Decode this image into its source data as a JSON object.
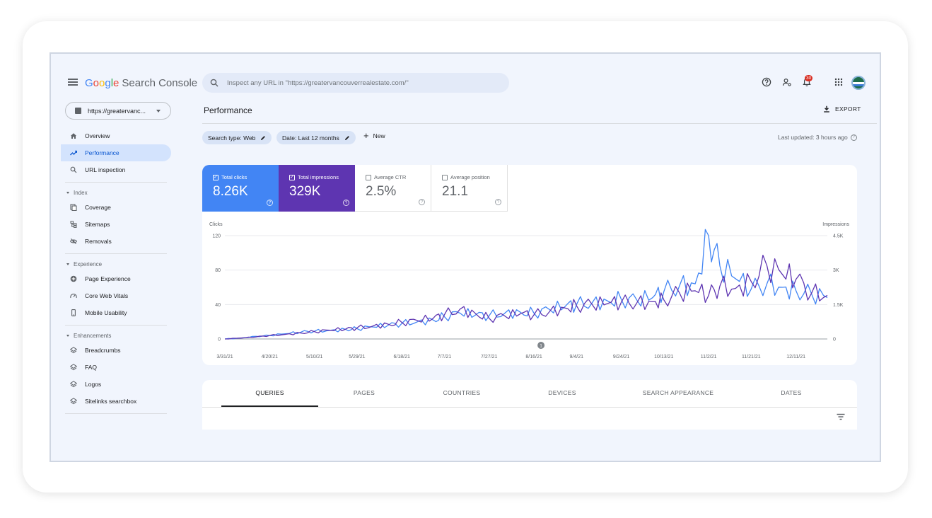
{
  "app": {
    "logo_letters": [
      "G",
      "o",
      "o",
      "g",
      "l",
      "e"
    ],
    "product": "Search Console",
    "search_placeholder": "Inspect any URL in \"https://greatervancouverrealestate.com/\"",
    "notification_count": "30",
    "property": "https://greatervanc..."
  },
  "icons": {
    "menu": "hamburger-icon",
    "search": "search-icon",
    "help": "help-icon",
    "users": "manage-users-icon",
    "notifications": "bell-icon",
    "apps": "apps-grid-icon",
    "export": "download-icon",
    "edit": "pencil-icon",
    "filter": "filter-icon"
  },
  "sidebar": {
    "top_items": [
      {
        "label": "Overview",
        "icon": "home-icon",
        "active": false
      },
      {
        "label": "Performance",
        "icon": "trending-up-icon",
        "active": true
      },
      {
        "label": "URL inspection",
        "icon": "search-icon",
        "active": false
      }
    ],
    "sections": [
      {
        "label": "Index",
        "items": [
          {
            "label": "Coverage",
            "icon": "coverage-icon"
          },
          {
            "label": "Sitemaps",
            "icon": "sitemap-icon"
          },
          {
            "label": "Removals",
            "icon": "removals-icon"
          }
        ]
      },
      {
        "label": "Experience",
        "items": [
          {
            "label": "Page Experience",
            "icon": "plus-circle-icon"
          },
          {
            "label": "Core Web Vitals",
            "icon": "speed-icon"
          },
          {
            "label": "Mobile Usability",
            "icon": "phone-icon"
          }
        ]
      },
      {
        "label": "Enhancements",
        "items": [
          {
            "label": "Breadcrumbs",
            "icon": "layers-icon"
          },
          {
            "label": "FAQ",
            "icon": "layers-icon"
          },
          {
            "label": "Logos",
            "icon": "layers-icon"
          },
          {
            "label": "Sitelinks searchbox",
            "icon": "layers-icon"
          }
        ]
      }
    ]
  },
  "main": {
    "title": "Performance",
    "export_label": "EXPORT",
    "filters": [
      {
        "label": "Search type: Web"
      },
      {
        "label": "Date: Last 12 months"
      }
    ],
    "new_label": "New",
    "last_updated": "Last updated: 3 hours ago",
    "metrics": [
      {
        "label": "Total clicks",
        "value": "8.26K",
        "selected": true,
        "color": "#4285f4"
      },
      {
        "label": "Total impressions",
        "value": "329K",
        "selected": true,
        "color": "#5e35b1"
      },
      {
        "label": "Average CTR",
        "value": "2.5%",
        "selected": false,
        "color": "#00897b"
      },
      {
        "label": "Average position",
        "value": "21.1",
        "selected": false,
        "color": "#e8710a"
      }
    ],
    "tabs": [
      "QUERIES",
      "PAGES",
      "COUNTRIES",
      "DEVICES",
      "SEARCH APPEARANCE",
      "DATES"
    ],
    "active_tab": 0
  },
  "chart_data": {
    "type": "line",
    "left_axis_label": "Clicks",
    "right_axis_label": "Impressions",
    "left_ticks": [
      "0",
      "40",
      "80",
      "120"
    ],
    "right_ticks": [
      "0",
      "1.5K",
      "3K",
      "4.5K"
    ],
    "ylim_left": [
      0,
      120
    ],
    "ylim_right": [
      0,
      4500
    ],
    "x_ticks": [
      "3/31/21",
      "4/20/21",
      "5/10/21",
      "5/29/21",
      "6/18/21",
      "7/7/21",
      "7/27/21",
      "8/16/21",
      "9/4/21",
      "9/24/21",
      "10/13/21",
      "11/2/21",
      "11/21/21",
      "12/11/21"
    ],
    "annotation": "1",
    "annotation_date": "8/16/21",
    "grid": true,
    "series": [
      {
        "name": "Clicks",
        "color": "#4285f4",
        "axis": "left",
        "x": [
          "3/31/21",
          "4/7/21",
          "4/14/21",
          "4/20/21",
          "4/27/21",
          "5/4/21",
          "5/10/21",
          "5/17/21",
          "5/24/21",
          "5/29/21",
          "6/5/21",
          "6/12/21",
          "6/18/21",
          "6/25/21",
          "7/2/21",
          "7/7/21",
          "7/14/21",
          "7/21/21",
          "7/27/21",
          "8/3/21",
          "8/10/21",
          "8/16/21",
          "8/23/21",
          "8/30/21",
          "9/4/21",
          "9/11/21",
          "9/18/21",
          "9/24/21",
          "10/1/21",
          "10/8/21",
          "10/13/21",
          "10/20/21",
          "10/27/21",
          "11/2/21",
          "11/7/21",
          "11/14/21",
          "11/21/21",
          "11/28/21",
          "12/5/21",
          "12/11/21",
          "12/18/21",
          "12/25/21"
        ],
        "values": [
          0,
          1,
          3,
          4,
          6,
          8,
          9,
          10,
          11,
          12,
          14,
          16,
          18,
          20,
          22,
          26,
          30,
          28,
          27,
          30,
          31,
          30,
          34,
          38,
          40,
          42,
          44,
          46,
          45,
          48,
          55,
          62,
          64,
          120,
          85,
          70,
          58,
          64,
          60,
          56,
          52,
          48
        ]
      },
      {
        "name": "Impressions",
        "color": "#5e35b1",
        "axis": "right",
        "x": [
          "3/31/21",
          "4/7/21",
          "4/14/21",
          "4/20/21",
          "4/27/21",
          "5/4/21",
          "5/10/21",
          "5/17/21",
          "5/24/21",
          "5/29/21",
          "6/5/21",
          "6/12/21",
          "6/18/21",
          "6/25/21",
          "7/2/21",
          "7/7/21",
          "7/14/21",
          "7/21/21",
          "7/27/21",
          "8/3/21",
          "8/10/21",
          "8/16/21",
          "8/23/21",
          "8/30/21",
          "9/4/21",
          "9/11/21",
          "9/18/21",
          "9/24/21",
          "10/1/21",
          "10/8/21",
          "10/13/21",
          "10/20/21",
          "10/27/21",
          "11/2/21",
          "11/7/21",
          "11/14/21",
          "11/21/21",
          "11/28/21",
          "12/5/21",
          "12/11/21",
          "12/18/21",
          "12/25/21"
        ],
        "values": [
          0,
          40,
          90,
          150,
          200,
          260,
          320,
          380,
          430,
          480,
          560,
          640,
          720,
          800,
          900,
          1050,
          1300,
          1100,
          900,
          1000,
          1100,
          1050,
          1200,
          1350,
          1450,
          1500,
          1550,
          1600,
          1580,
          1620,
          1700,
          2000,
          2100,
          1900,
          2300,
          2200,
          2500,
          3200,
          2800,
          2600,
          2000,
          1900
        ]
      }
    ]
  }
}
